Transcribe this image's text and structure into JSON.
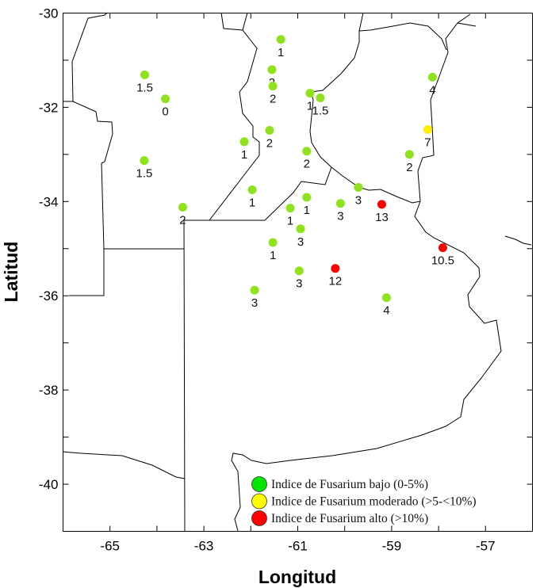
{
  "chart_data": {
    "type": "scatter",
    "xlabel": "Longitud",
    "ylabel": "Latitud",
    "xlim": [
      -66,
      -56
    ],
    "ylim": [
      -41,
      -30
    ],
    "x_ticks": [
      "-65",
      "-63",
      "-61",
      "-59",
      "-57"
    ],
    "y_ticks": [
      "-30",
      "-32",
      "-34",
      "-36",
      "-38",
      "-40"
    ],
    "grid": false,
    "legend_placement": "bottom-right",
    "categories": [
      {
        "key": "bajo",
        "label": "Indice de Fusarium bajo (0-5%)",
        "color": "#00e600",
        "point_color": "#8fe31c"
      },
      {
        "key": "moderado",
        "label": "Indice de Fusarium moderado (>5-<10%)",
        "color": "#ffff00",
        "point_color": "#ffee00"
      },
      {
        "key": "alto",
        "label": "Indice de Fusarium alto (>10%)",
        "color": "#ff0000",
        "point_color": "#ff0000"
      }
    ],
    "points": [
      {
        "lon": -61.36,
        "lat": -30.56,
        "value": "1",
        "cat": "bajo"
      },
      {
        "lon": -64.26,
        "lat": -31.31,
        "value": "1.5",
        "cat": "bajo"
      },
      {
        "lon": -63.82,
        "lat": -31.82,
        "value": "0",
        "cat": "bajo"
      },
      {
        "lon": -61.55,
        "lat": -31.2,
        "value": "2",
        "cat": "bajo"
      },
      {
        "lon": -61.53,
        "lat": -31.55,
        "value": "2",
        "cat": "bajo"
      },
      {
        "lon": -60.74,
        "lat": -31.7,
        "value": "1",
        "cat": "bajo"
      },
      {
        "lon": -60.52,
        "lat": -31.8,
        "value": "1.5",
        "cat": "bajo"
      },
      {
        "lon": -58.13,
        "lat": -31.36,
        "value": "4",
        "cat": "bajo"
      },
      {
        "lon": -58.23,
        "lat": -32.47,
        "value": "7",
        "cat": "moderado"
      },
      {
        "lon": -58.62,
        "lat": -33.0,
        "value": "2",
        "cat": "bajo"
      },
      {
        "lon": -61.6,
        "lat": -32.49,
        "value": "2",
        "cat": "bajo"
      },
      {
        "lon": -62.14,
        "lat": -32.73,
        "value": "1",
        "cat": "bajo"
      },
      {
        "lon": -60.81,
        "lat": -32.93,
        "value": "2",
        "cat": "bajo"
      },
      {
        "lon": -64.27,
        "lat": -33.13,
        "value": "1.5",
        "cat": "bajo"
      },
      {
        "lon": -61.97,
        "lat": -33.75,
        "value": "1",
        "cat": "bajo"
      },
      {
        "lon": -63.45,
        "lat": -34.12,
        "value": "2",
        "cat": "bajo"
      },
      {
        "lon": -61.16,
        "lat": -34.14,
        "value": "1",
        "cat": "bajo"
      },
      {
        "lon": -60.81,
        "lat": -33.91,
        "value": "1",
        "cat": "bajo"
      },
      {
        "lon": -59.71,
        "lat": -33.7,
        "value": "3",
        "cat": "bajo"
      },
      {
        "lon": -60.09,
        "lat": -34.04,
        "value": "3",
        "cat": "bajo"
      },
      {
        "lon": -59.21,
        "lat": -34.06,
        "value": "13",
        "cat": "alto"
      },
      {
        "lon": -60.94,
        "lat": -34.58,
        "value": "3",
        "cat": "bajo"
      },
      {
        "lon": -61.53,
        "lat": -34.87,
        "value": "1",
        "cat": "bajo"
      },
      {
        "lon": -57.91,
        "lat": -34.98,
        "value": "10.5",
        "cat": "alto"
      },
      {
        "lon": -60.2,
        "lat": -35.42,
        "value": "12",
        "cat": "alto"
      },
      {
        "lon": -60.97,
        "lat": -35.47,
        "value": "3",
        "cat": "bajo"
      },
      {
        "lon": -61.92,
        "lat": -35.88,
        "value": "3",
        "cat": "bajo"
      },
      {
        "lon": -59.11,
        "lat": -36.04,
        "value": "4",
        "cat": "bajo"
      }
    ]
  }
}
